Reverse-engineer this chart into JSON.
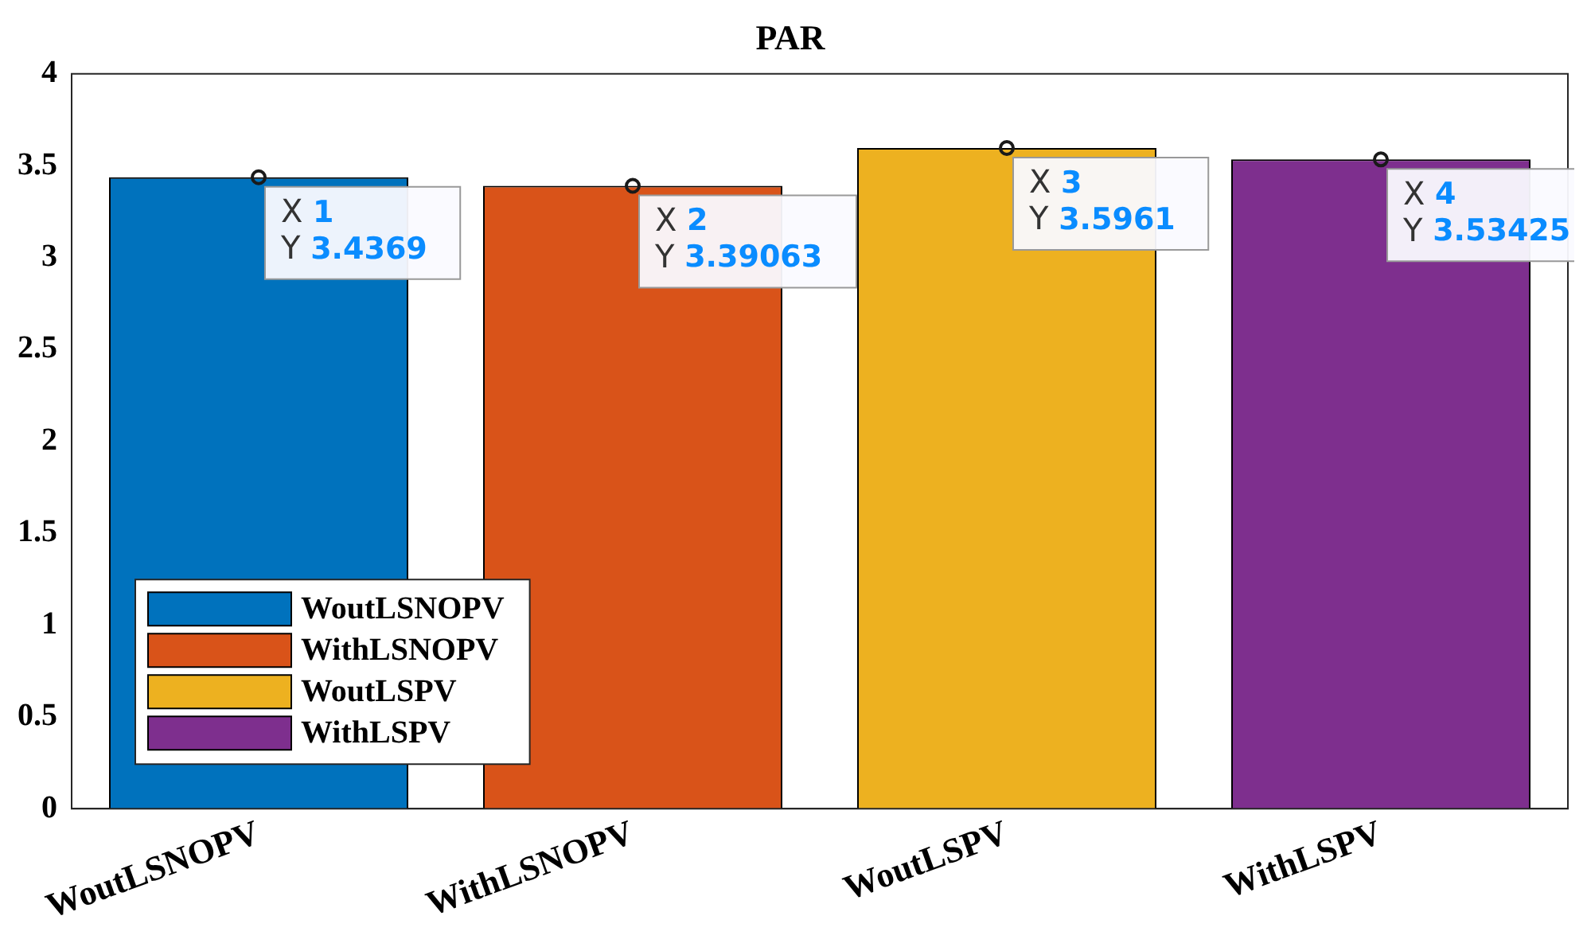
{
  "chart_data": {
    "type": "bar",
    "title": "PAR",
    "categories": [
      "WoutLSNOPV",
      "WithLSNOPV",
      "WoutLSPV",
      "WithLSPV"
    ],
    "series": [
      {
        "name": "WoutLSNOPV",
        "color": "#0072bd",
        "values": [
          3.4369,
          null,
          null,
          null
        ]
      },
      {
        "name": "WithLSNOPV",
        "color": "#d95319",
        "values": [
          null,
          3.39063,
          null,
          null
        ]
      },
      {
        "name": "WoutLSPV",
        "color": "#edb120",
        "values": [
          null,
          null,
          3.5961,
          null
        ]
      },
      {
        "name": "WithLSPV",
        "color": "#7e2f8e",
        "values": [
          null,
          null,
          null,
          3.53425
        ]
      }
    ],
    "ylim": [
      0,
      4
    ],
    "yticks": [
      0,
      0.5,
      1,
      1.5,
      2,
      2.5,
      3,
      3.5,
      4
    ],
    "grid": false,
    "legend": "bottom left",
    "annotations": [
      {
        "text": "X 1\nY 3.4369",
        "x": "WoutLSNOPV",
        "y": 3.4369
      },
      {
        "text": "X 2\nY 3.39063",
        "x": "WithLSNOPV",
        "y": 3.39063
      },
      {
        "text": "X 3\nY 3.5961",
        "x": "WoutLSPV",
        "y": 3.5961
      },
      {
        "text": "X 4\nY 3.53425",
        "x": "WithLSPV",
        "y": 3.53425
      }
    ]
  }
}
